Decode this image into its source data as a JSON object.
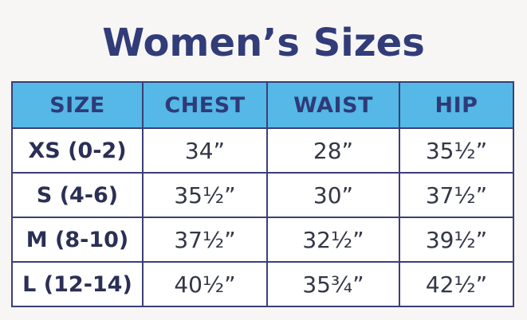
{
  "title": "Women’s Sizes",
  "colors": {
    "title": "#313c79",
    "header_background": "#55b8e6",
    "border": "#3b3f75",
    "page_background": "#f7f6f5"
  },
  "table": {
    "headers": [
      "SIZE",
      "CHEST",
      "WAIST",
      "HIP"
    ],
    "rows": [
      [
        "XS (0-2)",
        "34”",
        "28”",
        "35½”"
      ],
      [
        "S (4-6)",
        "35½”",
        "30”",
        "37½”"
      ],
      [
        "M (8-10)",
        "37½”",
        "32½”",
        "39½”"
      ],
      [
        "L (12-14)",
        "40½”",
        "35¾”",
        "42½”"
      ]
    ]
  }
}
